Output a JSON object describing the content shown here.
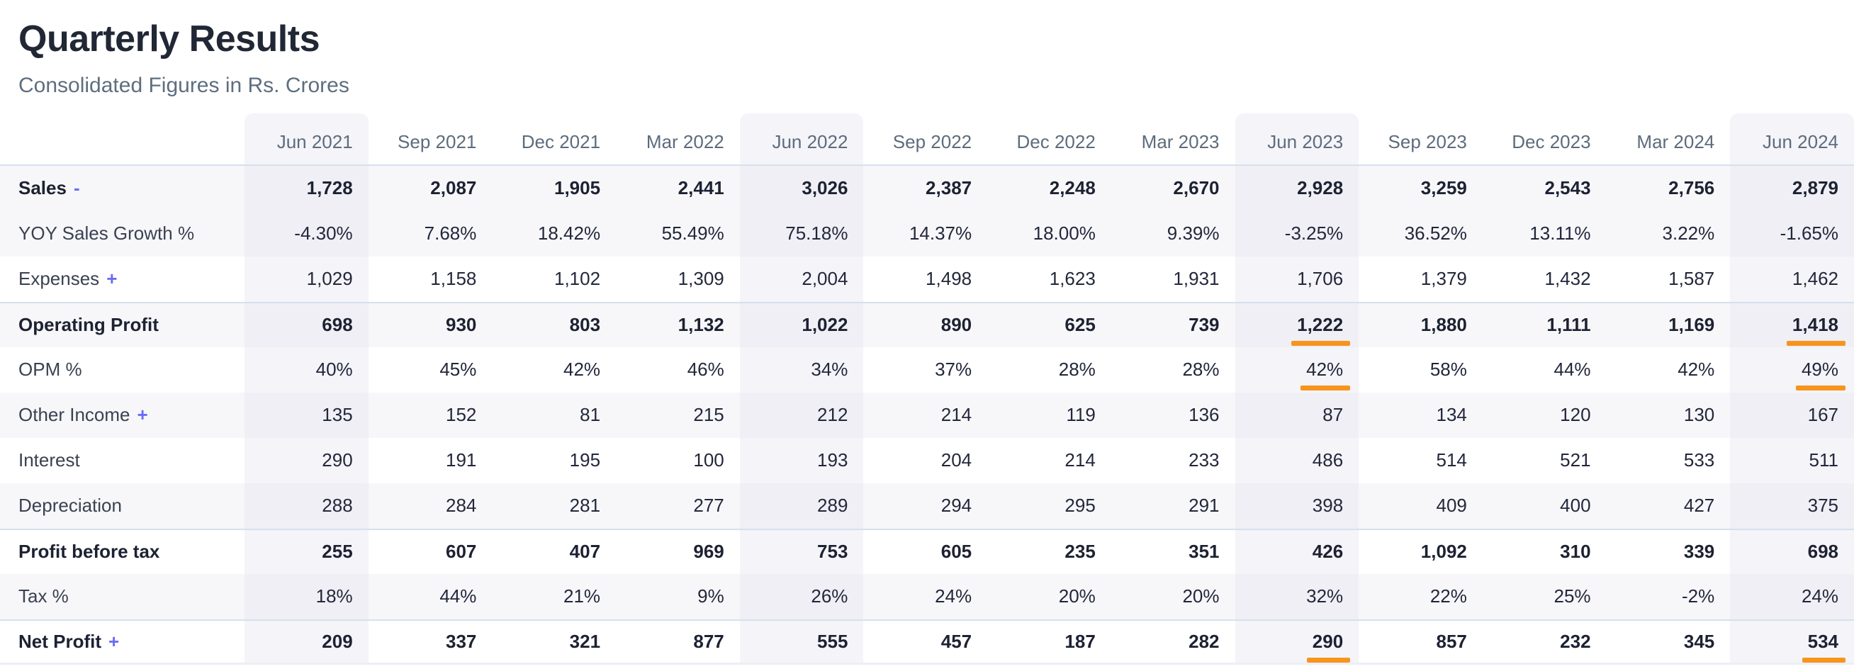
{
  "page": {
    "title": "Quarterly Results",
    "subtitle": "Consolidated Figures in Rs. Crores"
  },
  "colors": {
    "accent_underline": "#f7941e",
    "toggle_link": "#6c6cf5",
    "column_highlight": "#f4f4f9",
    "separator_line": "#d4e1ee",
    "row_stripe": "#f7f7fa"
  },
  "table": {
    "columns": [
      "Jun 2021",
      "Sep 2021",
      "Dec 2021",
      "Mar 2022",
      "Jun 2022",
      "Sep 2022",
      "Dec 2022",
      "Mar 2023",
      "Jun 2023",
      "Sep 2023",
      "Dec 2023",
      "Mar 2024",
      "Jun 2024"
    ],
    "highlighted_columns": [
      0,
      4,
      8,
      12
    ],
    "rows": [
      {
        "label": "Sales",
        "toggle": "-",
        "bold": true,
        "shaded": true,
        "separator": false,
        "underline": [],
        "values": [
          "1,728",
          "2,087",
          "1,905",
          "2,441",
          "3,026",
          "2,387",
          "2,248",
          "2,670",
          "2,928",
          "3,259",
          "2,543",
          "2,756",
          "2,879"
        ]
      },
      {
        "label": "YOY Sales Growth %",
        "toggle": "",
        "bold": false,
        "shaded": true,
        "separator": false,
        "underline": [],
        "values": [
          "-4.30%",
          "7.68%",
          "18.42%",
          "55.49%",
          "75.18%",
          "14.37%",
          "18.00%",
          "9.39%",
          "-3.25%",
          "36.52%",
          "13.11%",
          "3.22%",
          "-1.65%"
        ]
      },
      {
        "label": "Expenses",
        "toggle": "+",
        "bold": false,
        "shaded": false,
        "separator": false,
        "underline": [],
        "values": [
          "1,029",
          "1,158",
          "1,102",
          "1,309",
          "2,004",
          "1,498",
          "1,623",
          "1,931",
          "1,706",
          "1,379",
          "1,432",
          "1,587",
          "1,462"
        ]
      },
      {
        "label": "Operating Profit",
        "toggle": "",
        "bold": true,
        "shaded": true,
        "separator": true,
        "underline": [
          8,
          12
        ],
        "values": [
          "698",
          "930",
          "803",
          "1,132",
          "1,022",
          "890",
          "625",
          "739",
          "1,222",
          "1,880",
          "1,111",
          "1,169",
          "1,418"
        ]
      },
      {
        "label": "OPM %",
        "toggle": "",
        "bold": false,
        "shaded": false,
        "separator": false,
        "underline": [
          8,
          12
        ],
        "values": [
          "40%",
          "45%",
          "42%",
          "46%",
          "34%",
          "37%",
          "28%",
          "28%",
          "42%",
          "58%",
          "44%",
          "42%",
          "49%"
        ]
      },
      {
        "label": "Other Income",
        "toggle": "+",
        "bold": false,
        "shaded": true,
        "separator": false,
        "underline": [],
        "values": [
          "135",
          "152",
          "81",
          "215",
          "212",
          "214",
          "119",
          "136",
          "87",
          "134",
          "120",
          "130",
          "167"
        ]
      },
      {
        "label": "Interest",
        "toggle": "",
        "bold": false,
        "shaded": false,
        "separator": false,
        "underline": [],
        "values": [
          "290",
          "191",
          "195",
          "100",
          "193",
          "204",
          "214",
          "233",
          "486",
          "514",
          "521",
          "533",
          "511"
        ]
      },
      {
        "label": "Depreciation",
        "toggle": "",
        "bold": false,
        "shaded": true,
        "separator": false,
        "underline": [],
        "values": [
          "288",
          "284",
          "281",
          "277",
          "289",
          "294",
          "295",
          "291",
          "398",
          "409",
          "400",
          "427",
          "375"
        ]
      },
      {
        "label": "Profit before tax",
        "toggle": "",
        "bold": true,
        "shaded": false,
        "separator": true,
        "underline": [],
        "values": [
          "255",
          "607",
          "407",
          "969",
          "753",
          "605",
          "235",
          "351",
          "426",
          "1,092",
          "310",
          "339",
          "698"
        ]
      },
      {
        "label": "Tax %",
        "toggle": "",
        "bold": false,
        "shaded": true,
        "separator": false,
        "underline": [],
        "values": [
          "18%",
          "44%",
          "21%",
          "9%",
          "26%",
          "24%",
          "20%",
          "20%",
          "32%",
          "22%",
          "25%",
          "-2%",
          "24%"
        ]
      },
      {
        "label": "Net Profit",
        "toggle": "+",
        "bold": true,
        "shaded": false,
        "separator": true,
        "underline": [
          8,
          12
        ],
        "values": [
          "209",
          "337",
          "321",
          "877",
          "555",
          "457",
          "187",
          "282",
          "290",
          "857",
          "232",
          "345",
          "534"
        ]
      }
    ]
  }
}
